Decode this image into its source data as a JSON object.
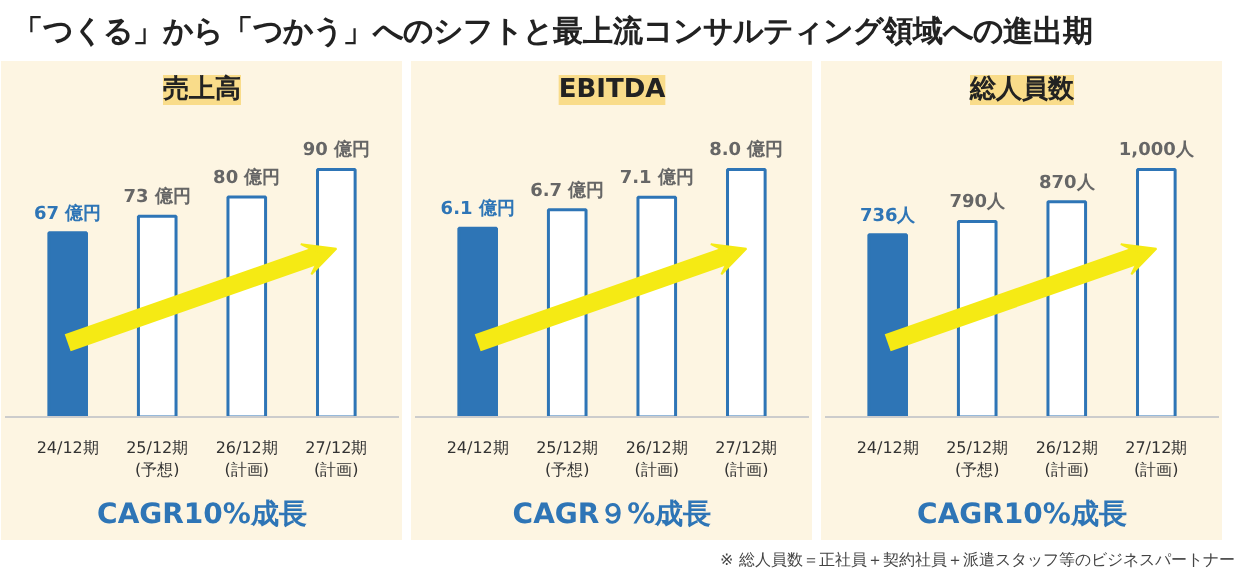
{
  "chart_data": [
    {
      "type": "other",
      "title": "「つくる」から「つかう」へのシフトと最上流コンサルティング領域への進出期",
      "annotations": [
        "※ 総人員数＝正社員＋契約社員＋派遣スタッフ等のビジネスパートナー"
      ]
    },
    {
      "type": "bar",
      "title": "売上高",
      "categories": [
        "24/12期",
        "25/12期\n(予想)",
        "26/12期\n(計画)",
        "27/12期\n(計画)"
      ],
      "values": [
        67,
        73,
        80,
        90
      ],
      "value_labels": [
        "67 億円",
        "73 億円",
        "80 億円",
        "90 億円"
      ],
      "colors": [
        "#2e75b6",
        "#ffffff",
        "#ffffff",
        "#ffffff"
      ],
      "annotations": [
        "CAGR10%成長"
      ]
    },
    {
      "type": "bar",
      "title": "EBITDA",
      "categories": [
        "24/12期",
        "25/12期\n(予想)",
        "26/12期\n(計画)",
        "27/12期\n(計画)"
      ],
      "values": [
        6.1,
        6.7,
        7.1,
        8.0
      ],
      "value_labels": [
        "6.1 億円",
        "6.7 億円",
        "7.1 億円",
        "8.0 億円"
      ],
      "colors": [
        "#2e75b6",
        "#ffffff",
        "#ffffff",
        "#ffffff"
      ],
      "annotations": [
        "CAGR９%成長"
      ]
    },
    {
      "type": "bar",
      "title": "総人員数",
      "categories": [
        "24/12期",
        "25/12期\n(予想)",
        "26/12期\n(計画)",
        "27/12期\n(計画)"
      ],
      "values": [
        736,
        790,
        870,
        1000
      ],
      "value_labels": [
        "736人",
        "790人",
        "870人",
        "1,000人"
      ],
      "colors": [
        "#2e75b6",
        "#ffffff",
        "#ffffff",
        "#ffffff"
      ],
      "annotations": [
        "CAGR10%成長"
      ]
    }
  ]
}
